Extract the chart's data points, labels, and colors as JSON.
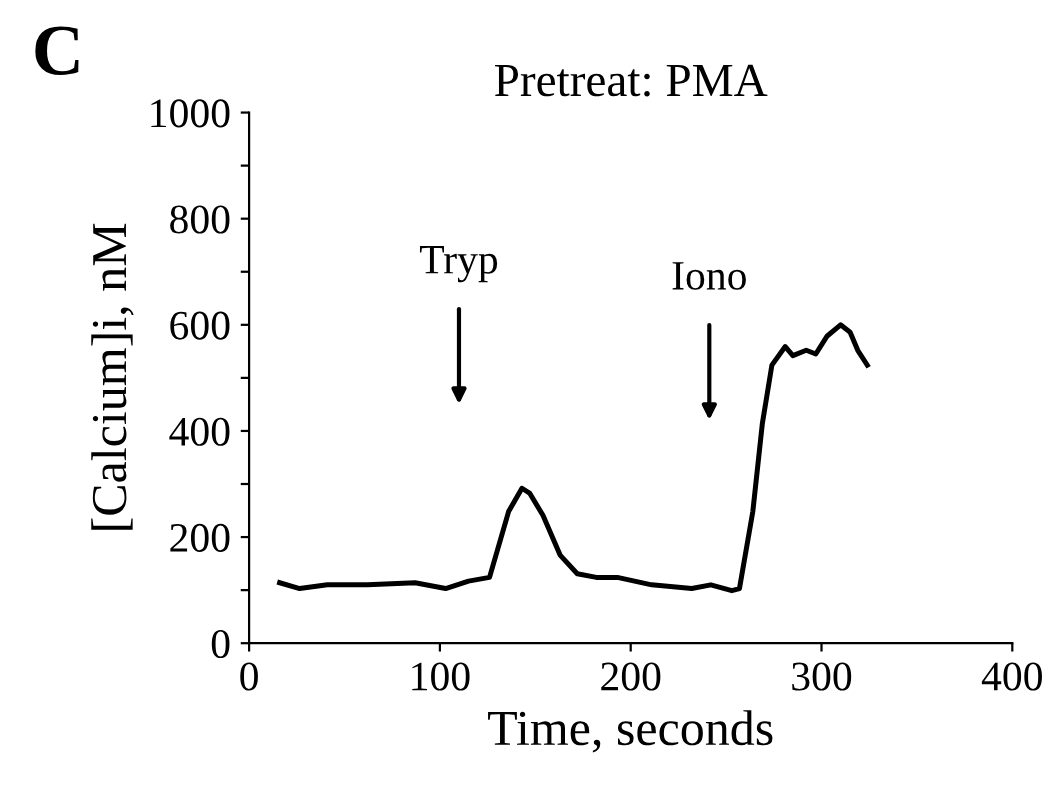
{
  "chart_data": {
    "type": "line",
    "title": "Pretreat: PMA",
    "xlabel": "Time, seconds",
    "ylabel": "[Calcium]i, nM",
    "annotations": [
      "C",
      "Tryp",
      "Iono"
    ],
    "xlim": [
      0,
      400
    ],
    "xticks": [
      0,
      100,
      200,
      300,
      400
    ],
    "ylim": [
      0,
      1000
    ],
    "yticks": [
      0,
      {
        "value": 100,
        "label": null
      },
      200,
      {
        "value": 300,
        "label": null
      },
      400,
      {
        "value": 500,
        "label": null
      },
      600,
      {
        "value": 700,
        "label": null
      },
      800,
      {
        "value": 900,
        "label": null
      },
      1000
    ],
    "grid": false,
    "legend": false,
    "marker": "none",
    "line_style": "solid",
    "series": [
      {
        "color": "#000000",
        "x": [
          16,
          26.5,
          41,
          62,
          87,
          103,
          115,
          126,
          136,
          143,
          147,
          154,
          163,
          172,
          182,
          193,
          211,
          232,
          242,
          253,
          257,
          264,
          269,
          274,
          281,
          285,
          292,
          297,
          303,
          310,
          315,
          319,
          324
        ],
        "values": [
          114,
          103,
          110,
          110,
          114,
          103,
          117,
          124,
          248,
          292,
          283,
          241,
          166,
          131,
          124,
          124,
          110,
          103,
          110,
          99,
          103,
          248,
          414,
          524,
          559,
          542,
          552,
          545,
          579,
          600,
          586,
          552,
          524
        ]
      }
    ]
  }
}
